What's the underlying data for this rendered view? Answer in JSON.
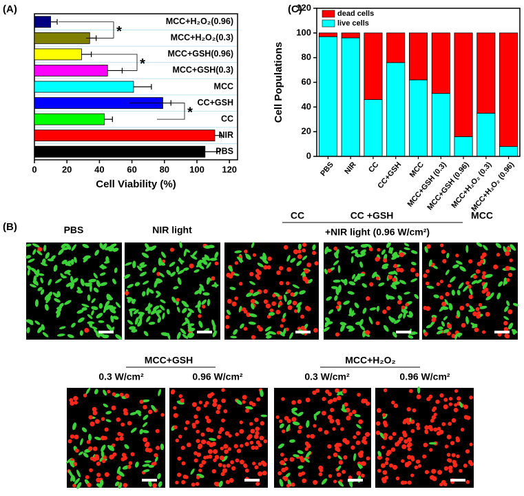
{
  "chart_data": [
    {
      "type": "barh",
      "panel_label": "(A)",
      "xlabel": "Cell Viability (%)",
      "categories": [
        "MCC+H₂O₂(0.96)",
        "MCC+H₂O₂(0.3)",
        "MCC+GSH(0.96)",
        "MCC+GSH(0.3)",
        "MCC",
        "CC+GSH",
        "CC",
        "NIR",
        "PBS"
      ],
      "values": [
        10,
        34,
        29,
        45,
        61,
        79,
        43,
        111,
        105
      ],
      "errors": [
        4,
        4,
        6,
        9,
        11,
        5,
        5,
        4,
        9
      ],
      "colors": [
        "#000080",
        "#808000",
        "#ffff00",
        "#ff00ff",
        "#00ffff",
        "#0000ff",
        "#00ff00",
        "#ff0000",
        "#000000"
      ],
      "xlim": [
        0,
        125
      ],
      "xticks": [
        0,
        20,
        40,
        60,
        80,
        100,
        120
      ],
      "annotations": [
        "*",
        "*",
        "*"
      ]
    },
    {
      "type": "bar",
      "stacked": true,
      "panel_label": "(C)",
      "ylabel": "Cell Populations",
      "categories": [
        "PBS",
        "NIR",
        "CC",
        "CC+GSH",
        "MCC",
        "MCC+GSH (0.3)",
        "MCC+GSH (0.96)",
        "MCC+H₂O₂ (0.3)",
        "MCC+H₂O₂ (0.96)"
      ],
      "series": [
        {
          "name": "live cells",
          "color": "#00ffff",
          "values": [
            97,
            96,
            46,
            76,
            62,
            51,
            16,
            35,
            8
          ]
        },
        {
          "name": "dead cells",
          "color": "#ff0000",
          "values": [
            3,
            4,
            54,
            24,
            38,
            49,
            84,
            65,
            92
          ]
        }
      ],
      "ylim": [
        0,
        120
      ],
      "yticks": [
        0,
        20,
        40,
        60,
        80,
        100,
        120
      ],
      "legend": "top-left"
    }
  ],
  "figure_b": {
    "panel_label": "(B)",
    "row1": [
      "PBS",
      "NIR light",
      "CC",
      "CC +GSH",
      "MCC"
    ],
    "row1_group": "+NIR light (0.96 W/cm²)",
    "row2_groups": [
      "MCC+GSH",
      "MCC+H₂O₂"
    ],
    "row2": [
      "0.3 W/cm²",
      "0.96 W/cm²",
      "0.3 W/cm²",
      "0.96 W/cm²"
    ]
  }
}
